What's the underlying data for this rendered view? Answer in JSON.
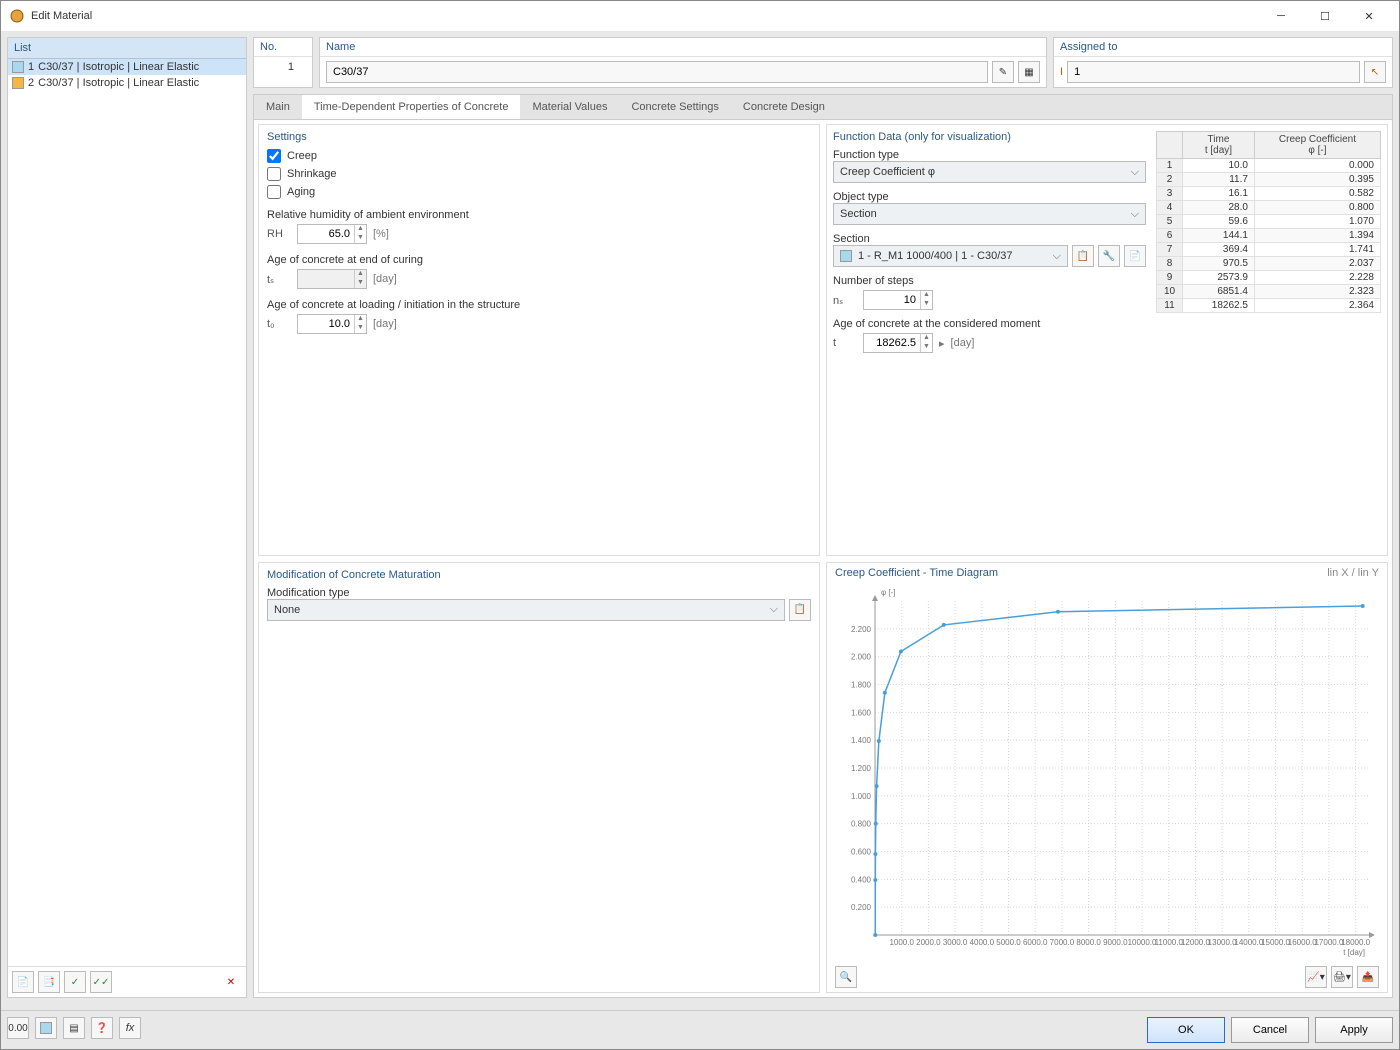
{
  "window": {
    "title": "Edit Material"
  },
  "list": {
    "header": "List",
    "items": [
      {
        "num": "1",
        "label": "C30/37 | Isotropic | Linear Elastic",
        "swatch": "#a7d8f0",
        "selected": true
      },
      {
        "num": "2",
        "label": "C30/37 | Isotropic | Linear Elastic",
        "swatch": "#f5b642",
        "selected": false
      }
    ]
  },
  "header_fields": {
    "no_label": "No.",
    "no_value": "1",
    "name_label": "Name",
    "name_value": "C30/37",
    "assigned_label": "Assigned to",
    "assigned_value": "1"
  },
  "tabs": {
    "items": [
      "Main",
      "Time-Dependent Properties of Concrete",
      "Material Values",
      "Concrete Settings",
      "Concrete Design"
    ],
    "selected": 1
  },
  "settings": {
    "title": "Settings",
    "creep_label": "Creep",
    "creep_checked": true,
    "shrinkage_label": "Shrinkage",
    "shrinkage_checked": false,
    "aging_label": "Aging",
    "aging_checked": false,
    "rh_heading": "Relative humidity of ambient environment",
    "rh_label": "RH",
    "rh_value": "65.0",
    "rh_unit": "[%]",
    "age_curing_heading": "Age of concrete at end of curing",
    "ts_label": "tₛ",
    "ts_unit": "[day]",
    "age_loading_heading": "Age of concrete at loading / initiation in the structure",
    "t0_label": "t₀",
    "t0_value": "10.0",
    "t0_unit": "[day]"
  },
  "modification": {
    "title": "Modification of Concrete Maturation",
    "type_label": "Modification type",
    "type_value": "None"
  },
  "function_data": {
    "title": "Function Data (only for visualization)",
    "function_type_label": "Function type",
    "function_type_value": "Creep Coefficient φ",
    "object_type_label": "Object type",
    "object_type_value": "Section",
    "section_label": "Section",
    "section_value": "1 - R_M1 1000/400 | 1 - C30/37",
    "steps_label": "Number of steps",
    "ns_label": "nₛ",
    "ns_value": "10",
    "age_moment_label": "Age of concrete at the considered moment",
    "t_label": "t",
    "t_value": "18262.5",
    "t_unit": "[day]",
    "table": {
      "columns": [
        "",
        "Time\nt [day]",
        "Creep Coefficient\nφ [-]"
      ],
      "rows": [
        [
          "1",
          "10.0",
          "0.000"
        ],
        [
          "2",
          "11.7",
          "0.395"
        ],
        [
          "3",
          "16.1",
          "0.582"
        ],
        [
          "4",
          "28.0",
          "0.800"
        ],
        [
          "5",
          "59.6",
          "1.070"
        ],
        [
          "6",
          "144.1",
          "1.394"
        ],
        [
          "7",
          "369.4",
          "1.741"
        ],
        [
          "8",
          "970.5",
          "2.037"
        ],
        [
          "9",
          "2573.9",
          "2.228"
        ],
        [
          "10",
          "6851.4",
          "2.323"
        ],
        [
          "11",
          "18262.5",
          "2.364"
        ]
      ]
    }
  },
  "chart": {
    "title": "Creep Coefficient - Time Diagram",
    "scale_label": "lin X / lin Y",
    "y_axis_label": "φ\n[-]",
    "x_axis_label": "t\n[day]",
    "yticks": [
      "0.200",
      "0.400",
      "0.600",
      "0.800",
      "1.000",
      "1.200",
      "1.400",
      "1.600",
      "1.800",
      "2.000",
      "2.200"
    ],
    "xticks": [
      "1000.0",
      "2000.0",
      "3000.0",
      "4000.0",
      "5000.0",
      "6000.0",
      "7000.0",
      "8000.0",
      "9000.0",
      "10000.0",
      "11000.0",
      "12000.0",
      "13000.0",
      "14000.0",
      "15000.0",
      "16000.0",
      "17000.0",
      "18000.0"
    ],
    "ylim": [
      0,
      2.4
    ],
    "xlim": [
      0,
      18500
    ],
    "points": [
      [
        10.0,
        0.0
      ],
      [
        11.7,
        0.395
      ],
      [
        16.1,
        0.582
      ],
      [
        28.0,
        0.8
      ],
      [
        59.6,
        1.07
      ],
      [
        144.1,
        1.394
      ],
      [
        369.4,
        1.741
      ],
      [
        970.5,
        2.037
      ],
      [
        2573.9,
        2.228
      ],
      [
        6851.4,
        2.323
      ],
      [
        18262.5,
        2.364
      ]
    ],
    "line_color": "#4a9fd8",
    "grid_color": "#d8d8d8",
    "axis_color": "#999",
    "background": "#ffffff"
  },
  "buttons": {
    "ok": "OK",
    "cancel": "Cancel",
    "apply": "Apply"
  }
}
